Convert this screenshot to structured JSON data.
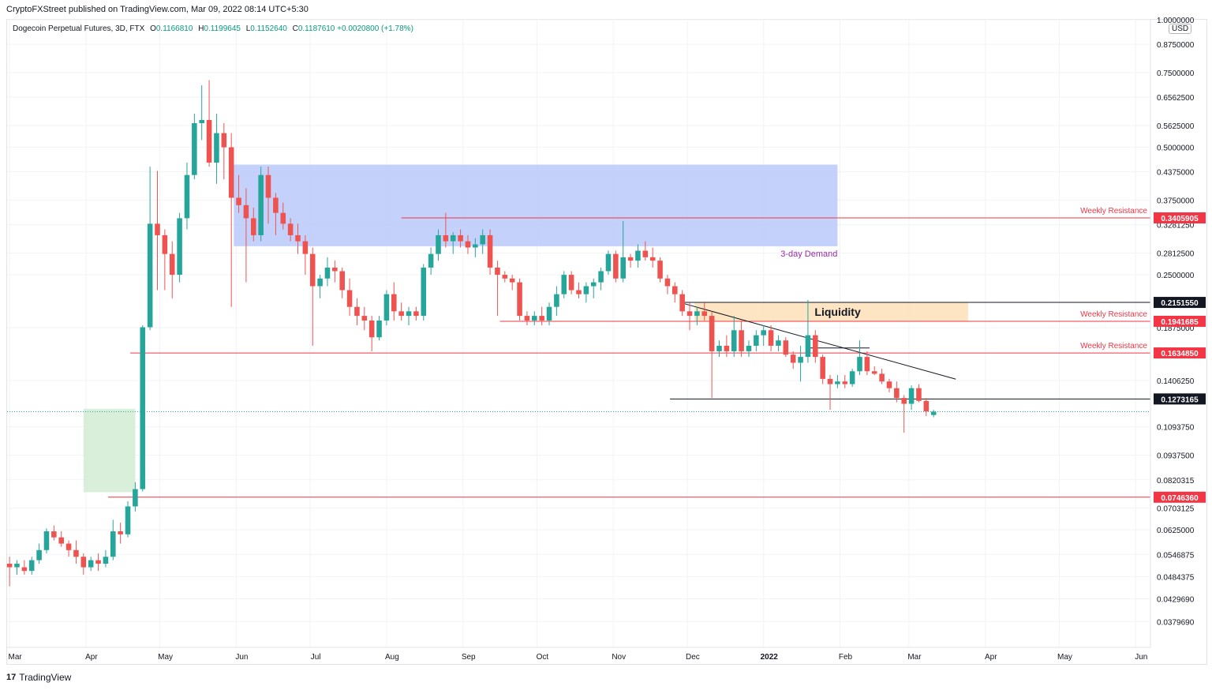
{
  "header": {
    "published": "CryptoFXStreet published on TradingView.com, Mar 09, 2022 08:14 UTC+5:30"
  },
  "legend": {
    "symbol": "Dogecoin Perpetual Futures, 3D, FTX",
    "o_label": "O",
    "o_value": "0.1166810",
    "h_label": "H",
    "h_value": "0.1199645",
    "l_label": "L",
    "l_value": "0.1152640",
    "c_label": "C",
    "c_value": "0.1187610",
    "change": "+0.0020800 (+1.78%)"
  },
  "currency_button": "USD",
  "branding": {
    "logo": "17",
    "name": "TradingView"
  },
  "colors": {
    "up": "#26a69a",
    "down": "#ef5350",
    "resistance": "#f23645",
    "demand_zone": "#b8c9fa",
    "liquidity_zone": "#fde0b8",
    "support_zone": "#d4ecd4",
    "annotation_purple": "#9c27b0",
    "black": "#131722"
  },
  "chart_data": {
    "type": "candlestick",
    "title": "Dogecoin Perpetual Futures, 3D, FTX",
    "y_scale": "log",
    "ylim": [
      0.033,
      1.0
    ],
    "y_ticks": [
      "1.0000000",
      "0.8750000",
      "0.7500000",
      "0.6562500",
      "0.5625000",
      "0.5000000",
      "0.4375000",
      "0.3750000",
      "0.3281250",
      "0.2812500",
      "0.2500000",
      "0.1875000",
      "0.1406250",
      "0.1093750",
      "0.0937500",
      "0.0820315",
      "0.0703125",
      "0.0625000",
      "0.0546875",
      "0.0484375",
      "0.0429690",
      "0.0379690"
    ],
    "y_tick_values": [
      1.0,
      0.875,
      0.75,
      0.65625,
      0.5625,
      0.5,
      0.4375,
      0.375,
      0.328125,
      0.28125,
      0.25,
      0.1875,
      0.140625,
      0.109375,
      0.09375,
      0.0820315,
      0.0703125,
      0.0625,
      0.0546875,
      0.0484375,
      0.042969,
      0.037969
    ],
    "x_ticks": [
      "Mar",
      "Apr",
      "May",
      "Jun",
      "Jul",
      "Aug",
      "Sep",
      "Oct",
      "Nov",
      "Dec",
      "2022",
      "Feb",
      "Mar",
      "Apr",
      "May",
      "Jun"
    ],
    "x_tick_dates": [
      "2021-03-01",
      "2021-04-01",
      "2021-05-01",
      "2021-06-01",
      "2021-07-01",
      "2021-08-01",
      "2021-09-01",
      "2021-10-01",
      "2021-11-01",
      "2021-12-01",
      "2022-01-01",
      "2022-02-01",
      "2022-03-01",
      "2022-04-01",
      "2022-05-01",
      "2022-06-01"
    ],
    "x_range": [
      "2021-02-28",
      "2022-06-07"
    ],
    "candle_start": "2021-03-01",
    "candle_interval_days": 3,
    "candles": [
      [
        0.052,
        0.054,
        0.046,
        0.051
      ],
      [
        0.051,
        0.053,
        0.049,
        0.052
      ],
      [
        0.051,
        0.053,
        0.049,
        0.05
      ],
      [
        0.05,
        0.054,
        0.049,
        0.053
      ],
      [
        0.053,
        0.058,
        0.052,
        0.056
      ],
      [
        0.056,
        0.063,
        0.055,
        0.062
      ],
      [
        0.062,
        0.064,
        0.059,
        0.06
      ],
      [
        0.06,
        0.062,
        0.057,
        0.058
      ],
      [
        0.058,
        0.059,
        0.054,
        0.056
      ],
      [
        0.056,
        0.059,
        0.052,
        0.054
      ],
      [
        0.054,
        0.055,
        0.049,
        0.051
      ],
      [
        0.051,
        0.054,
        0.05,
        0.053
      ],
      [
        0.053,
        0.055,
        0.05,
        0.052
      ],
      [
        0.052,
        0.056,
        0.051,
        0.054
      ],
      [
        0.054,
        0.066,
        0.053,
        0.062
      ],
      [
        0.062,
        0.065,
        0.058,
        0.061
      ],
      [
        0.061,
        0.073,
        0.06,
        0.071
      ],
      [
        0.071,
        0.081,
        0.069,
        0.078
      ],
      [
        0.078,
        0.19,
        0.077,
        0.188
      ],
      [
        0.188,
        0.45,
        0.185,
        0.33
      ],
      [
        0.33,
        0.44,
        0.23,
        0.31
      ],
      [
        0.31,
        0.32,
        0.23,
        0.28
      ],
      [
        0.28,
        0.3,
        0.22,
        0.25
      ],
      [
        0.25,
        0.35,
        0.24,
        0.34
      ],
      [
        0.34,
        0.46,
        0.32,
        0.43
      ],
      [
        0.43,
        0.6,
        0.42,
        0.57
      ],
      [
        0.57,
        0.7,
        0.52,
        0.58
      ],
      [
        0.58,
        0.72,
        0.45,
        0.46
      ],
      [
        0.46,
        0.6,
        0.41,
        0.54
      ],
      [
        0.54,
        0.57,
        0.42,
        0.5
      ],
      [
        0.5,
        0.54,
        0.21,
        0.38
      ],
      [
        0.38,
        0.43,
        0.35,
        0.365
      ],
      [
        0.365,
        0.4,
        0.24,
        0.34
      ],
      [
        0.34,
        0.36,
        0.3,
        0.31
      ],
      [
        0.31,
        0.45,
        0.3,
        0.43
      ],
      [
        0.43,
        0.45,
        0.33,
        0.38
      ],
      [
        0.38,
        0.39,
        0.31,
        0.35
      ],
      [
        0.35,
        0.37,
        0.32,
        0.33
      ],
      [
        0.33,
        0.34,
        0.3,
        0.31
      ],
      [
        0.31,
        0.33,
        0.28,
        0.3
      ],
      [
        0.3,
        0.31,
        0.25,
        0.28
      ],
      [
        0.28,
        0.29,
        0.17,
        0.235
      ],
      [
        0.235,
        0.25,
        0.22,
        0.245
      ],
      [
        0.245,
        0.275,
        0.235,
        0.26
      ],
      [
        0.26,
        0.27,
        0.24,
        0.255
      ],
      [
        0.255,
        0.26,
        0.22,
        0.23
      ],
      [
        0.23,
        0.245,
        0.2,
        0.21
      ],
      [
        0.21,
        0.22,
        0.19,
        0.2
      ],
      [
        0.2,
        0.21,
        0.185,
        0.195
      ],
      [
        0.195,
        0.2,
        0.165,
        0.178
      ],
      [
        0.178,
        0.2,
        0.175,
        0.195
      ],
      [
        0.195,
        0.23,
        0.19,
        0.225
      ],
      [
        0.225,
        0.24,
        0.195,
        0.205
      ],
      [
        0.205,
        0.215,
        0.195,
        0.2
      ],
      [
        0.2,
        0.21,
        0.19,
        0.205
      ],
      [
        0.205,
        0.21,
        0.195,
        0.2
      ],
      [
        0.2,
        0.265,
        0.195,
        0.26
      ],
      [
        0.26,
        0.29,
        0.25,
        0.28
      ],
      [
        0.28,
        0.32,
        0.27,
        0.31
      ],
      [
        0.31,
        0.35,
        0.29,
        0.3
      ],
      [
        0.3,
        0.315,
        0.28,
        0.31
      ],
      [
        0.31,
        0.32,
        0.29,
        0.3
      ],
      [
        0.3,
        0.31,
        0.28,
        0.29
      ],
      [
        0.29,
        0.305,
        0.275,
        0.295
      ],
      [
        0.295,
        0.32,
        0.28,
        0.31
      ],
      [
        0.31,
        0.32,
        0.25,
        0.26
      ],
      [
        0.26,
        0.27,
        0.2,
        0.25
      ],
      [
        0.25,
        0.255,
        0.24,
        0.245
      ],
      [
        0.245,
        0.25,
        0.23,
        0.24
      ],
      [
        0.24,
        0.245,
        0.195,
        0.2
      ],
      [
        0.2,
        0.205,
        0.19,
        0.195
      ],
      [
        0.195,
        0.205,
        0.19,
        0.2
      ],
      [
        0.2,
        0.21,
        0.19,
        0.195
      ],
      [
        0.195,
        0.215,
        0.19,
        0.21
      ],
      [
        0.21,
        0.235,
        0.2,
        0.225
      ],
      [
        0.225,
        0.255,
        0.22,
        0.25
      ],
      [
        0.25,
        0.255,
        0.225,
        0.23
      ],
      [
        0.23,
        0.24,
        0.22,
        0.225
      ],
      [
        0.225,
        0.24,
        0.215,
        0.235
      ],
      [
        0.235,
        0.245,
        0.22,
        0.24
      ],
      [
        0.24,
        0.26,
        0.23,
        0.255
      ],
      [
        0.255,
        0.285,
        0.25,
        0.28
      ],
      [
        0.28,
        0.285,
        0.24,
        0.245
      ],
      [
        0.245,
        0.335,
        0.24,
        0.275
      ],
      [
        0.275,
        0.28,
        0.26,
        0.27
      ],
      [
        0.27,
        0.295,
        0.26,
        0.285
      ],
      [
        0.285,
        0.3,
        0.27,
        0.275
      ],
      [
        0.275,
        0.29,
        0.26,
        0.27
      ],
      [
        0.27,
        0.275,
        0.24,
        0.245
      ],
      [
        0.245,
        0.25,
        0.225,
        0.235
      ],
      [
        0.235,
        0.24,
        0.215,
        0.225
      ],
      [
        0.225,
        0.23,
        0.2,
        0.205
      ],
      [
        0.205,
        0.215,
        0.185,
        0.2
      ],
      [
        0.2,
        0.21,
        0.19,
        0.205
      ],
      [
        0.205,
        0.215,
        0.195,
        0.2
      ],
      [
        0.2,
        0.205,
        0.128,
        0.165
      ],
      [
        0.165,
        0.175,
        0.16,
        0.17
      ],
      [
        0.17,
        0.18,
        0.16,
        0.165
      ],
      [
        0.165,
        0.2,
        0.16,
        0.185
      ],
      [
        0.185,
        0.195,
        0.16,
        0.165
      ],
      [
        0.165,
        0.175,
        0.16,
        0.17
      ],
      [
        0.17,
        0.185,
        0.165,
        0.18
      ],
      [
        0.18,
        0.19,
        0.17,
        0.185
      ],
      [
        0.185,
        0.19,
        0.165,
        0.17
      ],
      [
        0.17,
        0.18,
        0.165,
        0.175
      ],
      [
        0.175,
        0.178,
        0.16,
        0.162
      ],
      [
        0.162,
        0.165,
        0.15,
        0.155
      ],
      [
        0.155,
        0.17,
        0.14,
        0.16
      ],
      [
        0.16,
        0.218,
        0.155,
        0.18
      ],
      [
        0.18,
        0.185,
        0.155,
        0.16
      ],
      [
        0.16,
        0.162,
        0.138,
        0.142
      ],
      [
        0.142,
        0.145,
        0.12,
        0.138
      ],
      [
        0.138,
        0.145,
        0.135,
        0.14
      ],
      [
        0.14,
        0.145,
        0.135,
        0.138
      ],
      [
        0.138,
        0.15,
        0.136,
        0.148
      ],
      [
        0.148,
        0.175,
        0.145,
        0.16
      ],
      [
        0.16,
        0.165,
        0.145,
        0.148
      ],
      [
        0.148,
        0.152,
        0.145,
        0.146
      ],
      [
        0.146,
        0.15,
        0.138,
        0.14
      ],
      [
        0.14,
        0.142,
        0.132,
        0.135
      ],
      [
        0.135,
        0.14,
        0.125,
        0.128
      ],
      [
        0.128,
        0.13,
        0.106,
        0.124
      ],
      [
        0.124,
        0.137,
        0.12,
        0.135
      ],
      [
        0.135,
        0.138,
        0.125,
        0.126
      ],
      [
        0.126,
        0.128,
        0.116,
        0.119
      ],
      [
        0.116681,
        0.1199645,
        0.115264,
        0.118761
      ]
    ],
    "horizontal_levels": [
      {
        "value": 0.3405905,
        "label": "0.3405905",
        "note": "Weekly Resistance",
        "color": "#f23645",
        "from": "2021-08-07"
      },
      {
        "value": 0.215155,
        "label": "0.2151550",
        "note": "",
        "color": "#131722",
        "from": "2021-11-29"
      },
      {
        "value": 0.1941685,
        "label": "0.1941685",
        "note": "Weekly Resistance",
        "color": "#f23645",
        "from": "2021-09-16"
      },
      {
        "value": 0.163485,
        "label": "0.1634850",
        "note": "Weekly Resistance",
        "color": "#f23645",
        "from": "2021-04-19"
      },
      {
        "value": 0.1273165,
        "label": "0.1273165",
        "note": "",
        "color": "#131722",
        "from": "2021-11-24"
      },
      {
        "value": 0.074636,
        "label": "0.0746360",
        "note": "",
        "color": "#f23645",
        "from": "2021-04-10"
      }
    ],
    "zones": [
      {
        "name": "3-day Demand",
        "from": "2021-05-31",
        "to": "2022-01-31",
        "low": 0.292,
        "high": 0.455,
        "color": "#b8c9fa"
      },
      {
        "name": "Liquidity",
        "from": "2021-12-04",
        "to": "2022-03-25",
        "low": 0.1941685,
        "high": 0.215155,
        "color": "#fde0b8"
      },
      {
        "name": "",
        "from": "2021-03-31",
        "to": "2021-04-21",
        "low": 0.0767,
        "high": 0.1207,
        "color": "#d4ecd4"
      }
    ],
    "trendline": {
      "from": [
        "2021-11-28",
        0.215155
      ],
      "to": [
        "2022-03-20",
        0.1418
      ]
    },
    "range_line": {
      "from": [
        "2022-01-19",
        0.168
      ],
      "to": [
        "2022-02-13",
        0.168
      ]
    },
    "current_price": 0.118761,
    "annotations": [
      "Weekly Resistance",
      "Weekly Resistance",
      "Weekly Resistance",
      "3-day Demand",
      "Liquidity"
    ]
  }
}
